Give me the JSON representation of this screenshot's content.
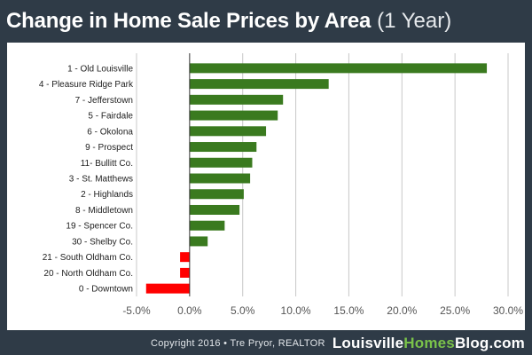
{
  "title": {
    "main": "Change in Home Sale Prices by Area",
    "sub": "(1 Year)"
  },
  "footer": {
    "copyright": "Copyright 2016 • Tre Pryor, REALTOR",
    "brand_part1": "Louisville",
    "brand_part2": "Homes",
    "brand_part3": "Blog.com"
  },
  "colors": {
    "positive": "#3a7a1f",
    "negative": "#ff0000",
    "grid": "#c8c8c8",
    "axis": "#333333",
    "accent": "#7ac24a"
  },
  "chart_data": {
    "type": "bar",
    "orientation": "horizontal",
    "title": "Change in Home Sale Prices by Area (1 Year)",
    "xlabel": "",
    "ylabel": "",
    "xlim": [
      -5,
      30
    ],
    "ticks": [
      -5,
      0,
      5,
      10,
      15,
      20,
      25,
      30
    ],
    "tick_labels": [
      "-5.0%",
      "0.0%",
      "5.0%",
      "10.0%",
      "15.0%",
      "20.0%",
      "25.0%",
      "30.0%"
    ],
    "grid": true,
    "categories": [
      "1 - Old Louisville",
      "4 - Pleasure Ridge Park",
      "7 - Jefferstown",
      "5 - Fairdale",
      "6 - Okolona",
      "9 - Prospect",
      "11- Bullitt Co.",
      "3 - St. Matthews",
      "2 - Highlands",
      "8 - Middletown",
      "19 - Spencer Co.",
      "30 - Shelby Co.",
      "21 - South Oldham Co.",
      "20 - North Oldham Co.",
      "0 - Downtown"
    ],
    "values": [
      28.0,
      13.1,
      8.8,
      8.3,
      7.2,
      6.3,
      5.9,
      5.7,
      5.1,
      4.7,
      3.3,
      1.7,
      -0.9,
      -0.9,
      -4.1
    ]
  }
}
